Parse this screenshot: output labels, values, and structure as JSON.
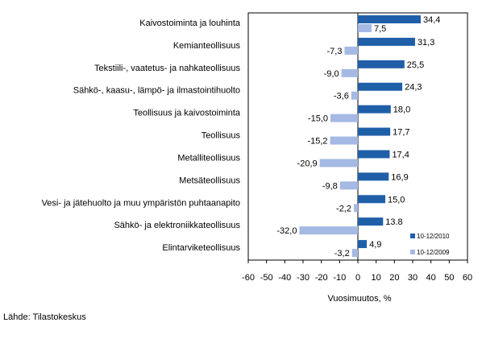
{
  "chart_data": {
    "type": "bar",
    "orientation": "horizontal",
    "categories": [
      "Kaivostoiminta ja louhinta",
      "Kemianteollisuus",
      "Tekstiili-, vaatetus- ja nahkateollisuus",
      "Sähkö-, kaasu-, lämpö- ja ilmastointihuolto",
      "Teollisuus ja kaivostoiminta",
      "Teollisuus",
      "Metalliteollisuus",
      "Metsäteollisuus",
      "Vesi- ja jätehuolto ja muu ympäristön puhtaanapito",
      "Sähkö- ja elektroniikkateollisuus",
      "Elintarviketeollisuus"
    ],
    "series": [
      {
        "name": "10-12/2010",
        "color": "#1f5fa8",
        "values": [
          34.4,
          31.3,
          25.5,
          24.3,
          18.0,
          17.7,
          17.4,
          16.9,
          15.0,
          13.8,
          4.9
        ],
        "labels": [
          "34,4",
          "31,3",
          "25,5",
          "24,3",
          "18,0",
          "17,7",
          "17,4",
          "16,9",
          "15,0",
          "13.8",
          "4,9"
        ]
      },
      {
        "name": "10-12/2009",
        "color": "#a4b9e3",
        "values": [
          7.5,
          -7.3,
          -9.0,
          -3.6,
          -15.0,
          -15.2,
          -20.9,
          -9.8,
          -2.2,
          -32.0,
          -3.2
        ],
        "labels": [
          "7,5",
          "-7,3",
          "-9,0",
          "-3,6",
          "-15,0",
          "-15,2",
          "-20,9",
          "-9,8",
          "-2,2",
          "-32,0",
          "-3,2"
        ]
      }
    ],
    "xlim": [
      -60,
      60
    ],
    "xticks": [
      -60,
      -50,
      -40,
      -30,
      -20,
      -10,
      0,
      10,
      20,
      30,
      40,
      50,
      60
    ],
    "xlabel": "Vuosimuutos, %",
    "legend_position": "right",
    "grid": false
  },
  "source": "Lähde: Tilastokeskus"
}
